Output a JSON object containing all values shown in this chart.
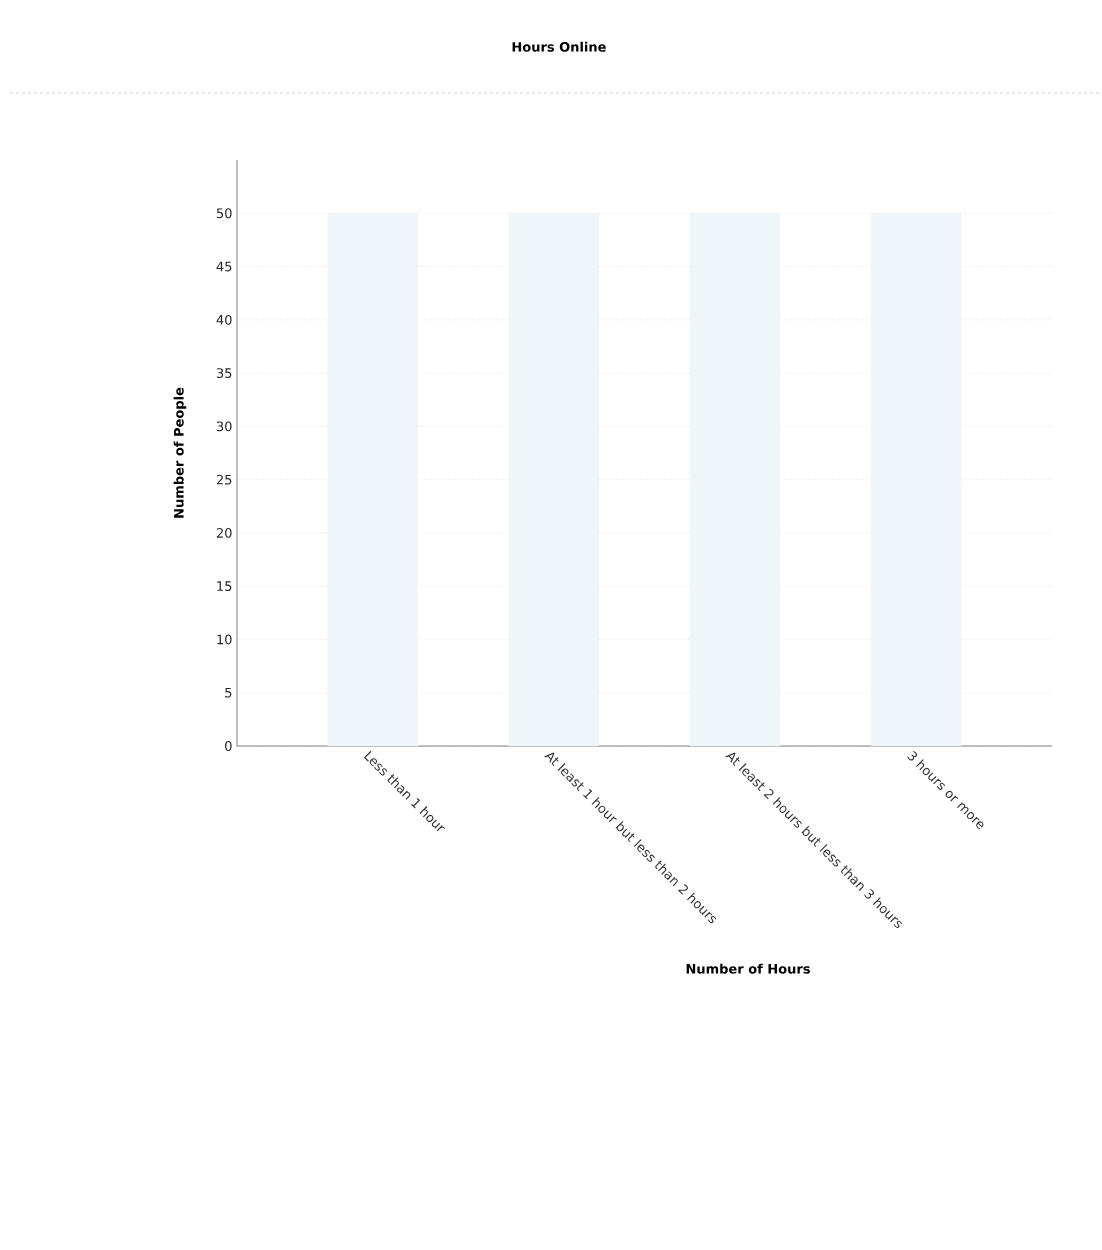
{
  "chart_data": {
    "type": "bar",
    "title": "Hours Online",
    "xlabel": "Number of Hours",
    "ylabel": "Number of People",
    "categories": [
      "Less than 1 hour",
      "At least 1 hour but less than 2 hours",
      "At least 2 hours but less than 3 hours",
      "3 hours or more"
    ],
    "values": [
      50,
      50,
      50,
      50
    ],
    "color": "#eef6fa",
    "ylim": [
      0,
      55
    ],
    "yticks": [
      0,
      5,
      10,
      15,
      20,
      25,
      30,
      35,
      40,
      45,
      50
    ],
    "grid": "y"
  }
}
